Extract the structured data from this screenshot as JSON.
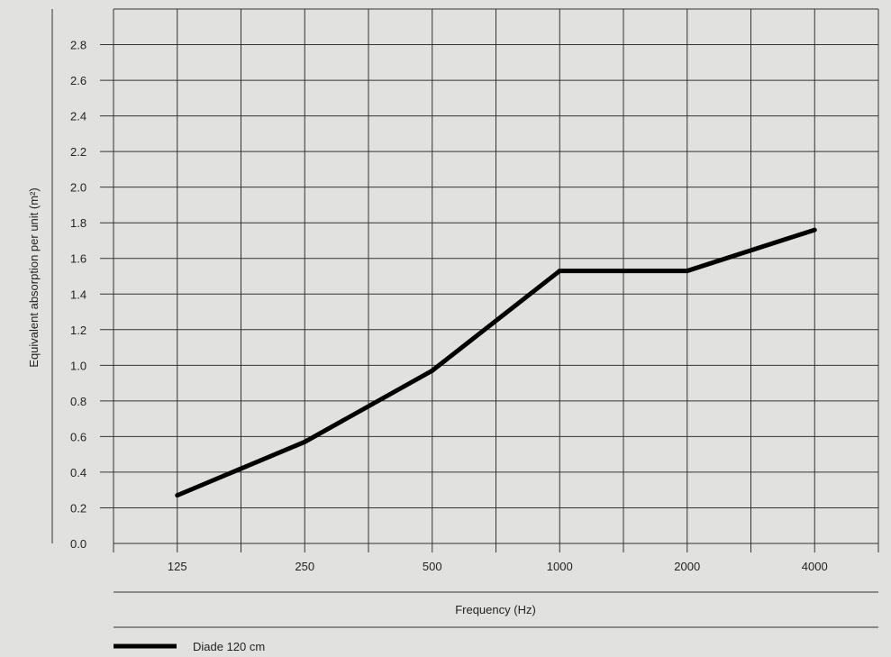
{
  "chart_data": {
    "type": "line",
    "categories": [
      "125",
      "250",
      "500",
      "1000",
      "2000",
      "4000"
    ],
    "series": [
      {
        "name": "Diade 120 cm",
        "values": [
          0.27,
          0.57,
          0.97,
          1.53,
          1.53,
          1.76
        ],
        "color": "#000000"
      }
    ],
    "xlabel": "Frequency (Hz)",
    "ylabel": "Equivalent absorption per unit (m²)",
    "ylim": [
      0,
      2.8
    ],
    "yticks": [
      "0.0",
      "0.2",
      "0.4",
      "0.6",
      "0.8",
      "1.0",
      "1.2",
      "1.4",
      "1.6",
      "1.8",
      "2.0",
      "2.2",
      "2.4",
      "2.6",
      "2.8"
    ],
    "grid": true,
    "legend": "bottom-left"
  }
}
